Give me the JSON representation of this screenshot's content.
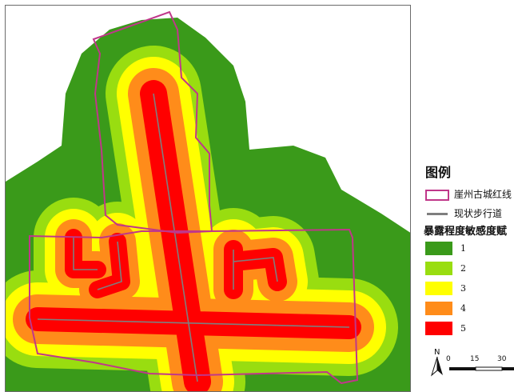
{
  "map": {
    "zone_colors": {
      "c1": "#3a9a1a",
      "c2": "#99dd10",
      "c3": "#ffff00",
      "c4": "#ff8c1a",
      "c5": "#ff0000"
    },
    "boundary_color": "#c0378a",
    "path_color": "#7f7f7f"
  },
  "legend": {
    "title": "图例",
    "boundary_label": "崖州古城红线",
    "path_label": "现状步行道",
    "class_title": "暴露程度敏感度赋",
    "classes": [
      {
        "label": "1",
        "color": "#3a9a1a"
      },
      {
        "label": "2",
        "color": "#99dd10"
      },
      {
        "label": "3",
        "color": "#ffff00"
      },
      {
        "label": "4",
        "color": "#ff8c1a"
      },
      {
        "label": "5",
        "color": "#ff0000"
      }
    ]
  },
  "scale_bar": {
    "north": "N",
    "ticks": [
      "0",
      "15",
      "30"
    ]
  }
}
